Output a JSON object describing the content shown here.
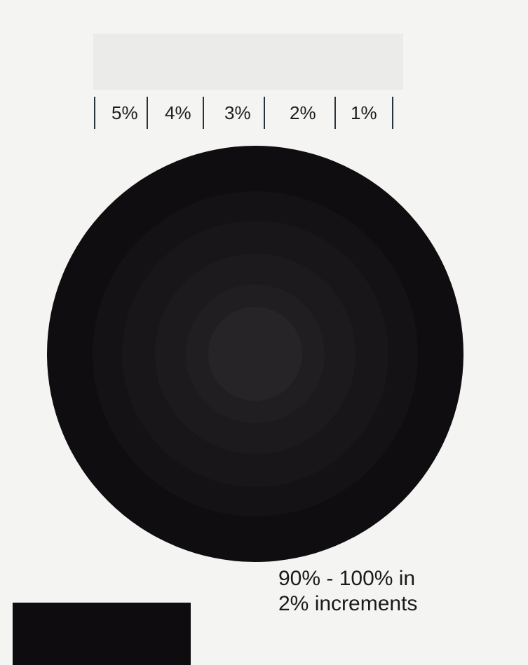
{
  "scale": {
    "labels": [
      "5%",
      "4%",
      "3%",
      "2%",
      "1%"
    ]
  },
  "target": {
    "rings": [
      {
        "level_percent": 100,
        "color": "#0f0d0f"
      },
      {
        "level_percent": 98,
        "color": "#141214"
      },
      {
        "level_percent": 96,
        "color": "#181618"
      },
      {
        "level_percent": 94,
        "color": "#1c1a1c"
      },
      {
        "level_percent": 92,
        "color": "#201e20"
      },
      {
        "level_percent": 90,
        "color": "#262426"
      }
    ]
  },
  "caption": {
    "line1": "90% - 100% in",
    "line2": "2% increments"
  },
  "colors": {
    "background": "#f4f4f2",
    "swatch": "#ebebea",
    "divider": "#29333a"
  }
}
